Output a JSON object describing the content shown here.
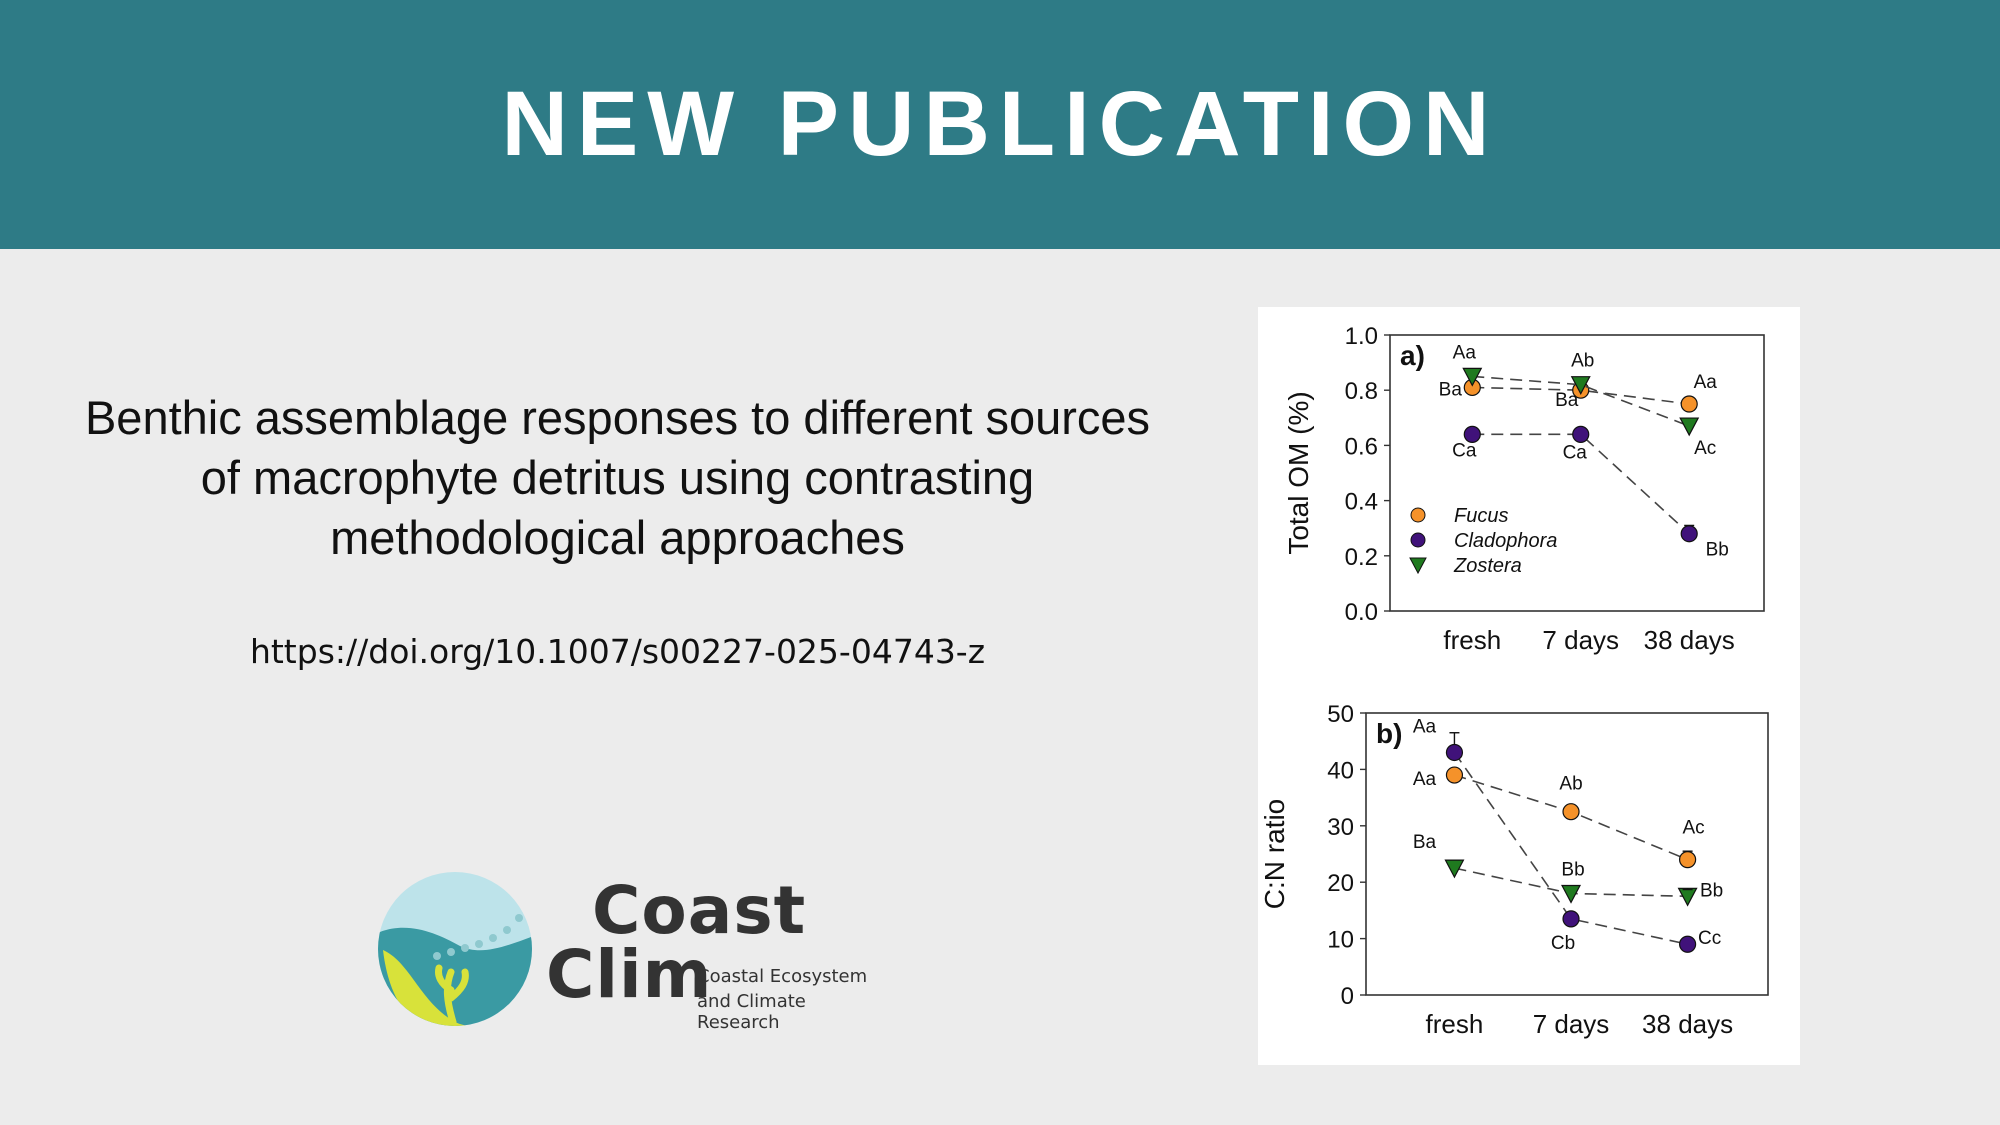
{
  "banner": {
    "title": "NEW PUBLICATION"
  },
  "paper": {
    "title_lines": [
      "Benthic assemblage responses to different sources",
      "of macrophyte detritus using contrasting",
      "methodological approaches"
    ],
    "doi": "https://doi.org/10.1007/s00227-025-04743-z"
  },
  "logo": {
    "word1": "Coast",
    "word2": "Clim",
    "subtitle_line1": "Coastal Ecosystem",
    "subtitle_line2": "and Climate Research",
    "colors": {
      "teal": "#3a9aa3",
      "yellow": "#d8e23a",
      "sky": "#bde3ea",
      "text": "#333333"
    }
  },
  "colors": {
    "banner": "#2e7b86",
    "background": "#ececec",
    "fucus": "#f5922a",
    "cladophora": "#40127a",
    "zostera": "#1f7a1f"
  },
  "chart_data": [
    {
      "type": "line",
      "panel_label": "a)",
      "ylabel": "Total OM (%)",
      "xlabel": "",
      "categories": [
        "fresh",
        "7 days",
        "38 days"
      ],
      "ylim": [
        0,
        1.0
      ],
      "yticks": [
        "0.0",
        "0.2",
        "0.4",
        "0.6",
        "0.8",
        "1.0"
      ],
      "legend": [
        "Fucus",
        "Cladophora",
        "Zostera"
      ],
      "legend_position": "bottom-left",
      "series": [
        {
          "name": "Fucus",
          "marker": "circle",
          "values": [
            0.81,
            0.8,
            0.75
          ],
          "labels": [
            "Ba",
            "Ba",
            "Aa"
          ]
        },
        {
          "name": "Cladophora",
          "marker": "circle",
          "values": [
            0.64,
            0.64,
            0.28
          ],
          "labels": [
            "Ca",
            "Ca",
            "Bb"
          ]
        },
        {
          "name": "Zostera",
          "marker": "triangle-down",
          "values": [
            0.85,
            0.82,
            0.67
          ],
          "labels": [
            "Aa",
            "Ab",
            "Ac"
          ]
        }
      ]
    },
    {
      "type": "line",
      "panel_label": "b)",
      "ylabel": "C:N ratio",
      "xlabel": "",
      "categories": [
        "fresh",
        "7 days",
        "38 days"
      ],
      "ylim": [
        0,
        50
      ],
      "yticks": [
        "0",
        "10",
        "20",
        "30",
        "40",
        "50"
      ],
      "series": [
        {
          "name": "Fucus",
          "marker": "circle",
          "values": [
            39,
            32.5,
            24
          ],
          "labels": [
            "Aa",
            "Ab",
            "Ac"
          ]
        },
        {
          "name": "Cladophora",
          "marker": "circle",
          "values": [
            43,
            13.5,
            9
          ],
          "labels": [
            "Aa",
            "Cb",
            "Cc"
          ]
        },
        {
          "name": "Zostera",
          "marker": "triangle-down",
          "values": [
            22.5,
            18,
            17.5
          ],
          "labels": [
            "Ba",
            "Bb",
            "Bb"
          ]
        }
      ]
    }
  ]
}
